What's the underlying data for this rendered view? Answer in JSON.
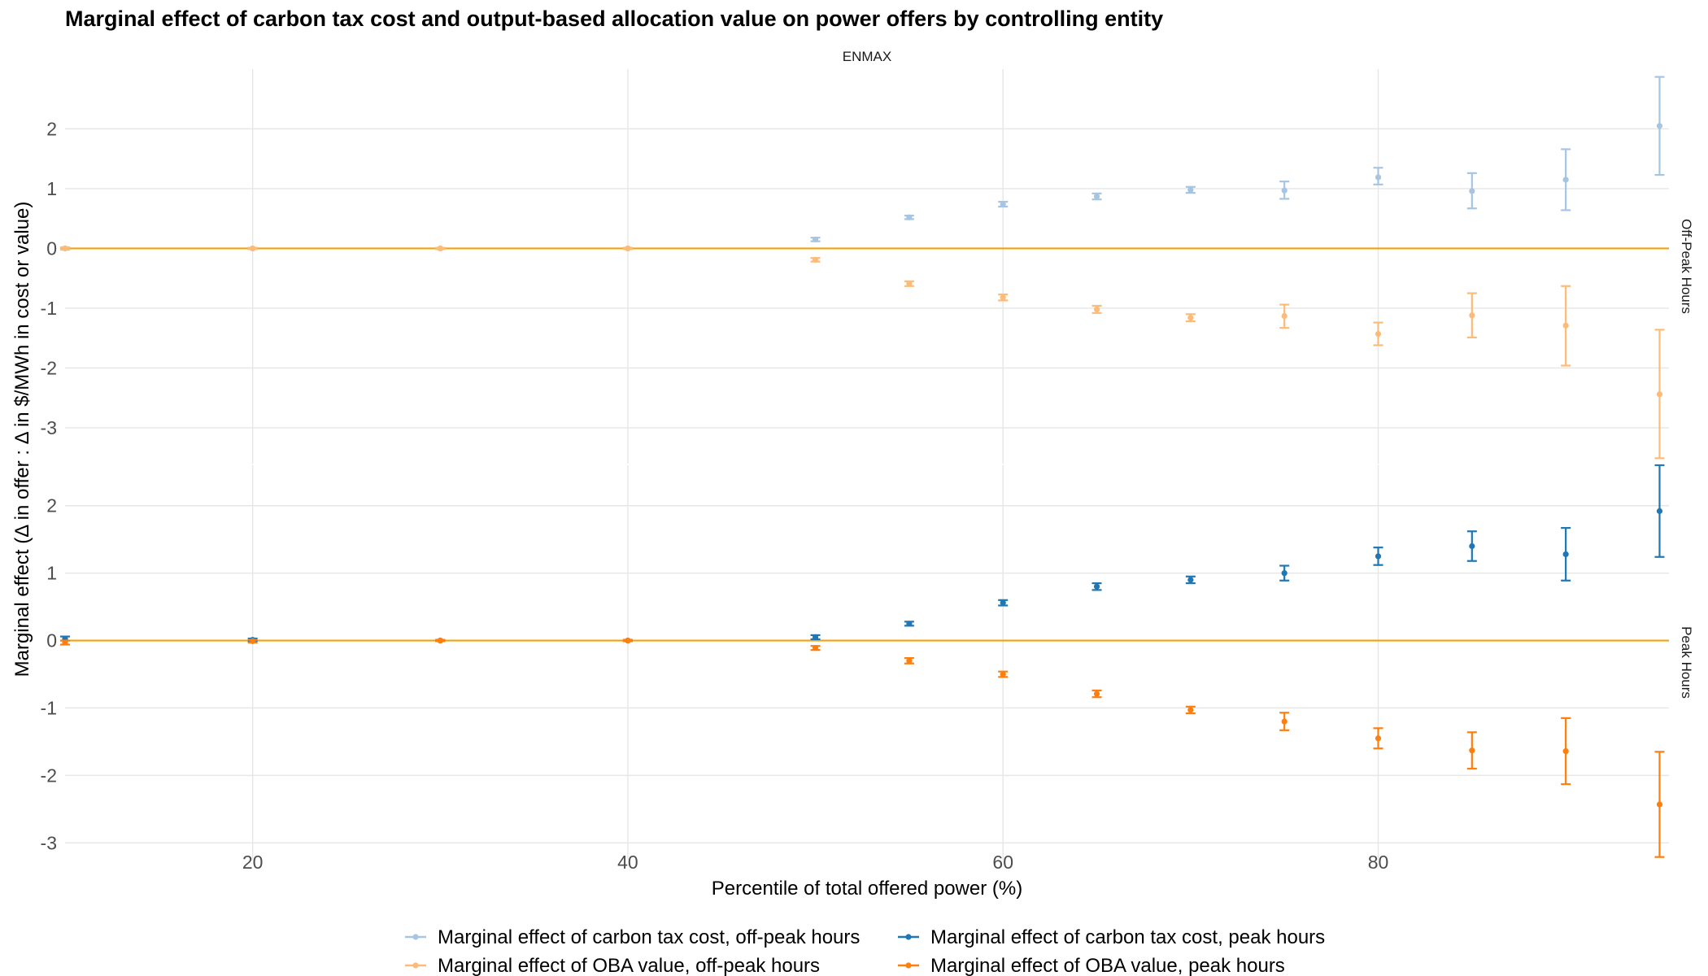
{
  "chart_data": {
    "type": "scatter",
    "title": "Marginal effect of carbon tax cost and output-based allocation value on power offers by controlling entity",
    "subtitle": "ENMAX",
    "xlabel": "Percentile of total offered power (%)",
    "ylabel": "Marginal effect (Δ in offer : Δ in $/MWh in cost or value)",
    "xlim": [
      10,
      95.5
    ],
    "x_ticks": [
      20,
      40,
      60,
      80
    ],
    "x_tick_labels": [
      "20",
      "40",
      "60",
      "80"
    ],
    "grid": true,
    "legend_position": "bottom",
    "reference_line": {
      "y": 0,
      "color": "#f2a20d"
    },
    "panels": [
      {
        "label": "Off-Peak Hours",
        "ylim": [
          -3.6,
          3.0
        ],
        "y_ticks": [
          -3,
          -2,
          -1,
          0,
          1,
          2
        ],
        "y_tick_labels": [
          "-3",
          "-2",
          "-1",
          "0",
          "1",
          "2"
        ],
        "series": [
          {
            "name": "Marginal effect of carbon tax cost, off-peak hours",
            "color": "#a6c5e3",
            "x": [
              10,
              20,
              30,
              40,
              50,
              55,
              60,
              65,
              70,
              75,
              80,
              85,
              90,
              95
            ],
            "y": [
              0.0,
              0.0,
              0.0,
              0.0,
              0.15,
              0.52,
              0.74,
              0.87,
              0.98,
              0.97,
              1.19,
              0.96,
              1.15,
              2.05
            ],
            "lo": [
              -0.01,
              -0.01,
              -0.01,
              -0.01,
              0.12,
              0.49,
              0.7,
              0.82,
              0.93,
              0.83,
              1.07,
              0.67,
              0.64,
              1.23
            ],
            "hi": [
              0.01,
              0.01,
              0.01,
              0.01,
              0.18,
              0.55,
              0.78,
              0.92,
              1.03,
              1.12,
              1.35,
              1.26,
              1.66,
              2.87
            ]
          },
          {
            "name": "Marginal effect of OBA value, off-peak hours",
            "color": "#fdbb78",
            "x": [
              10,
              20,
              30,
              40,
              50,
              55,
              60,
              65,
              70,
              75,
              80,
              85,
              90,
              95
            ],
            "y": [
              0.0,
              0.0,
              0.0,
              0.0,
              -0.19,
              -0.59,
              -0.82,
              -1.02,
              -1.16,
              -1.13,
              -1.43,
              -1.12,
              -1.29,
              -2.44
            ],
            "lo": [
              -0.02,
              -0.01,
              -0.01,
              -0.01,
              -0.22,
              -0.63,
              -0.87,
              -1.08,
              -1.22,
              -1.33,
              -1.62,
              -1.49,
              -1.96,
              -3.51
            ],
            "hi": [
              0.02,
              0.01,
              0.01,
              0.01,
              -0.16,
              -0.55,
              -0.77,
              -0.96,
              -1.1,
              -0.94,
              -1.24,
              -0.75,
              -0.63,
              -1.36
            ]
          }
        ]
      },
      {
        "label": "Peak Hours",
        "ylim": [
          -3.25,
          2.6
        ],
        "y_ticks": [
          -3,
          -2,
          -1,
          0,
          1,
          2
        ],
        "y_tick_labels": [
          "-3",
          "-2",
          "-1",
          "0",
          "1",
          "2"
        ],
        "series": [
          {
            "name": "Marginal effect of carbon tax cost, peak hours",
            "color": "#1f77b4",
            "x": [
              10,
              20,
              30,
              40,
              50,
              55,
              60,
              65,
              70,
              75,
              80,
              85,
              90,
              95
            ],
            "y": [
              0.03,
              0.01,
              0.0,
              0.0,
              0.05,
              0.25,
              0.56,
              0.8,
              0.9,
              1.0,
              1.25,
              1.4,
              1.28,
              1.92
            ],
            "lo": [
              0.0,
              -0.01,
              -0.01,
              -0.01,
              0.02,
              0.22,
              0.52,
              0.75,
              0.85,
              0.89,
              1.12,
              1.18,
              0.89,
              1.24
            ],
            "hi": [
              0.06,
              0.03,
              0.01,
              0.01,
              0.08,
              0.28,
              0.6,
              0.85,
              0.95,
              1.11,
              1.38,
              1.62,
              1.67,
              2.6
            ]
          },
          {
            "name": "Marginal effect of OBA value, peak hours",
            "color": "#ff7f0e",
            "x": [
              10,
              20,
              30,
              40,
              50,
              55,
              60,
              65,
              70,
              75,
              80,
              85,
              90,
              95
            ],
            "y": [
              -0.03,
              -0.01,
              0.0,
              0.0,
              -0.11,
              -0.3,
              -0.5,
              -0.79,
              -1.03,
              -1.2,
              -1.45,
              -1.63,
              -1.64,
              -2.43
            ],
            "lo": [
              -0.06,
              -0.03,
              -0.01,
              -0.01,
              -0.14,
              -0.34,
              -0.54,
              -0.84,
              -1.08,
              -1.33,
              -1.6,
              -1.9,
              -2.13,
              -3.21
            ],
            "hi": [
              0.0,
              0.01,
              0.01,
              0.01,
              -0.08,
              -0.26,
              -0.46,
              -0.74,
              -0.98,
              -1.07,
              -1.3,
              -1.36,
              -1.15,
              -1.65
            ]
          }
        ]
      }
    ],
    "legend_order": [
      "Marginal effect of carbon tax cost, off-peak hours",
      "Marginal effect of carbon tax cost, peak hours",
      "Marginal effect of OBA value, off-peak hours",
      "Marginal effect of OBA value, peak hours"
    ]
  }
}
